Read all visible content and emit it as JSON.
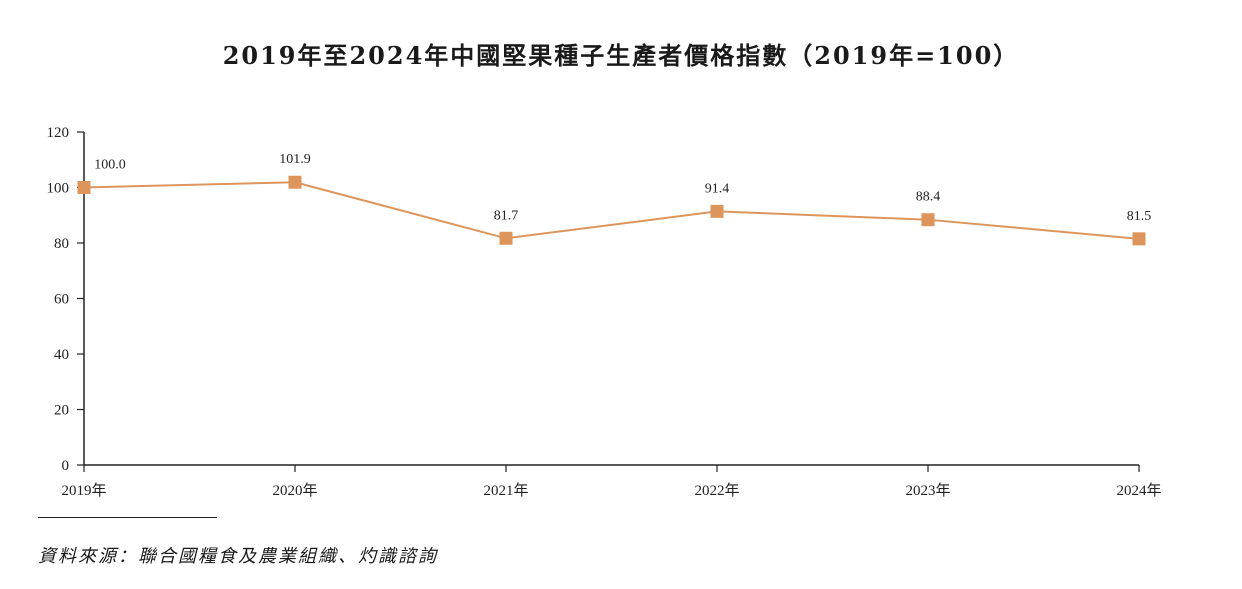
{
  "chart_data": {
    "type": "line",
    "title": "2019年至2024年中國堅果種子生產者價格指數（2019年=100）",
    "categories": [
      "2019年",
      "2020年",
      "2021年",
      "2022年",
      "2023年",
      "2024年"
    ],
    "series": [
      {
        "values": [
          100.0,
          101.9,
          81.7,
          91.4,
          88.4,
          81.5
        ],
        "labels": [
          "100.0",
          "101.9",
          "81.7",
          "91.4",
          "88.4",
          "81.5"
        ]
      }
    ],
    "xlabel": "",
    "ylabel": "",
    "ylim": [
      0,
      120
    ],
    "yticks": [
      "0",
      "20",
      "40",
      "60",
      "80",
      "100",
      "120"
    ],
    "grid": false,
    "legend": "none",
    "line_color": "#dd955b",
    "marker": "square"
  },
  "source": "資料來源：聯合國糧食及農業組織、灼識諮詢"
}
